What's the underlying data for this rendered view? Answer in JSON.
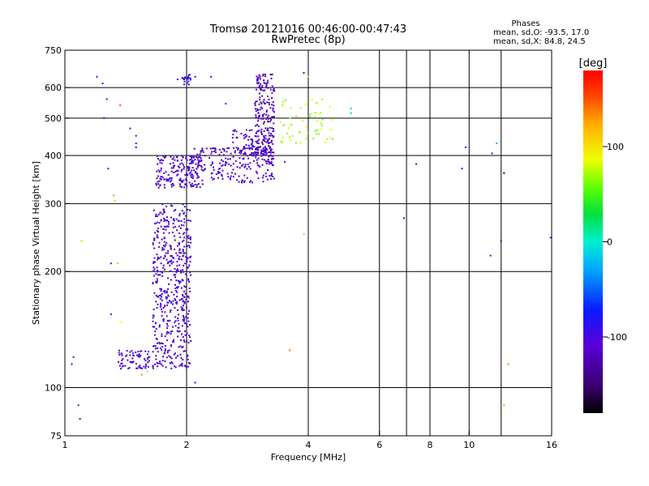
{
  "chart_data": {
    "type": "scatter",
    "title": "Tromsø 20121016 00:46:00-00:47:43",
    "subtitle": "RwPretec (8p)",
    "xlabel": "Frequency [MHz]",
    "ylabel": "Stationary phase Virtual Height [km]",
    "x_scale": "log",
    "y_scale": "log",
    "xlim": [
      1,
      16
    ],
    "ylim": [
      75,
      750
    ],
    "x_ticks": [
      1,
      2,
      4,
      6,
      8,
      10,
      16
    ],
    "x_tick_labels": [
      "1",
      "2",
      "4",
      "6",
      "8",
      "10",
      "16"
    ],
    "x_grid": [
      2,
      4,
      6,
      7,
      8,
      10,
      12
    ],
    "y_ticks": [
      75,
      100,
      200,
      300,
      400,
      500,
      600,
      750
    ],
    "y_tick_labels": [
      "75",
      "100",
      "200",
      "300",
      "400",
      "500",
      "600",
      "750"
    ],
    "grid": true,
    "stats": {
      "heading": "Phases",
      "line_o": "mean, sd,O: -93.5, 17.0",
      "line_x": "mean, sd,X:  84.8, 24.5"
    },
    "colorbar": {
      "label": "[deg]",
      "range": [
        -180,
        180
      ],
      "ticks": [
        -100,
        0,
        100
      ],
      "tick_labels": [
        "-100",
        "0",
        "100"
      ]
    },
    "clusters": [
      {
        "name": "",
        "x": [
          1.65,
          2.05
        ],
        "y": [
          112,
          300
        ],
        "phase": -105,
        "count": 520
      },
      {
        "name": "",
        "x": [
          1.35,
          1.62
        ],
        "y": [
          112,
          125
        ],
        "phase": -105,
        "count": 70
      },
      {
        "name": "",
        "x": [
          1.68,
          2.2
        ],
        "y": [
          330,
          400
        ],
        "phase": -110,
        "count": 180
      },
      {
        "name": "",
        "x": [
          2.05,
          3.3
        ],
        "y": [
          340,
          420
        ],
        "phase": -110,
        "count": 200
      },
      {
        "name": "",
        "x": [
          2.6,
          3.0
        ],
        "y": [
          400,
          470
        ],
        "phase": -110,
        "count": 60
      },
      {
        "name": "",
        "x": [
          2.95,
          3.3
        ],
        "y": [
          380,
          650
        ],
        "phase": -120,
        "count": 230
      },
      {
        "name": "",
        "x": [
          3.4,
          4.6
        ],
        "y": [
          430,
          560
        ],
        "phase": 75,
        "count": 55
      },
      {
        "name": "",
        "x": [
          1.95,
          2.05
        ],
        "y": [
          610,
          650
        ],
        "phase": -100,
        "count": 20
      }
    ],
    "points": [
      {
        "x": 1.05,
        "y": 120,
        "phase": -90
      },
      {
        "x": 1.04,
        "y": 115,
        "phase": -100
      },
      {
        "x": 1.08,
        "y": 90,
        "phase": -105
      },
      {
        "x": 1.09,
        "y": 83,
        "phase": -110
      },
      {
        "x": 1.1,
        "y": 240,
        "phase": 110
      },
      {
        "x": 1.2,
        "y": 640,
        "phase": -90
      },
      {
        "x": 1.24,
        "y": 615,
        "phase": -100
      },
      {
        "x": 1.27,
        "y": 560,
        "phase": -110
      },
      {
        "x": 1.25,
        "y": 500,
        "phase": -95
      },
      {
        "x": 1.3,
        "y": 210,
        "phase": -100
      },
      {
        "x": 1.32,
        "y": 315,
        "phase": 130
      },
      {
        "x": 1.33,
        "y": 305,
        "phase": 110
      },
      {
        "x": 1.37,
        "y": 540,
        "phase": 150
      },
      {
        "x": 1.28,
        "y": 370,
        "phase": -95
      },
      {
        "x": 1.5,
        "y": 450,
        "phase": -110
      },
      {
        "x": 1.5,
        "y": 430,
        "phase": -120
      },
      {
        "x": 1.5,
        "y": 420,
        "phase": -95
      },
      {
        "x": 1.45,
        "y": 470,
        "phase": -100
      },
      {
        "x": 1.55,
        "y": 108,
        "phase": 130
      },
      {
        "x": 1.6,
        "y": 110,
        "phase": 110
      },
      {
        "x": 1.35,
        "y": 210,
        "phase": 120
      },
      {
        "x": 1.3,
        "y": 155,
        "phase": -90
      },
      {
        "x": 1.38,
        "y": 148,
        "phase": 90
      },
      {
        "x": 1.9,
        "y": 630,
        "phase": -100
      },
      {
        "x": 2.1,
        "y": 640,
        "phase": -95
      },
      {
        "x": 2.1,
        "y": 103,
        "phase": -80
      },
      {
        "x": 2.3,
        "y": 640,
        "phase": -90
      },
      {
        "x": 2.5,
        "y": 545,
        "phase": -60
      },
      {
        "x": 3.5,
        "y": 385,
        "phase": -110
      },
      {
        "x": 3.6,
        "y": 125,
        "phase": 140
      },
      {
        "x": 3.9,
        "y": 250,
        "phase": 110
      },
      {
        "x": 3.9,
        "y": 655,
        "phase": -100
      },
      {
        "x": 4.0,
        "y": 640,
        "phase": 80
      },
      {
        "x": 5.1,
        "y": 530,
        "phase": 20
      },
      {
        "x": 5.1,
        "y": 515,
        "phase": 30
      },
      {
        "x": 6.9,
        "y": 275,
        "phase": -80
      },
      {
        "x": 7.4,
        "y": 380,
        "phase": -120
      },
      {
        "x": 9.6,
        "y": 370,
        "phase": -105
      },
      {
        "x": 9.8,
        "y": 420,
        "phase": -90
      },
      {
        "x": 11.4,
        "y": 405,
        "phase": -100
      },
      {
        "x": 11.7,
        "y": 430,
        "phase": -30
      },
      {
        "x": 11.3,
        "y": 220,
        "phase": -110
      },
      {
        "x": 12.0,
        "y": 240,
        "phase": -120
      },
      {
        "x": 12.2,
        "y": 360,
        "phase": -170
      },
      {
        "x": 12.5,
        "y": 115,
        "phase": 140
      },
      {
        "x": 12.2,
        "y": 90,
        "phase": 130
      },
      {
        "x": 15.9,
        "y": 245,
        "phase": -60
      }
    ]
  }
}
